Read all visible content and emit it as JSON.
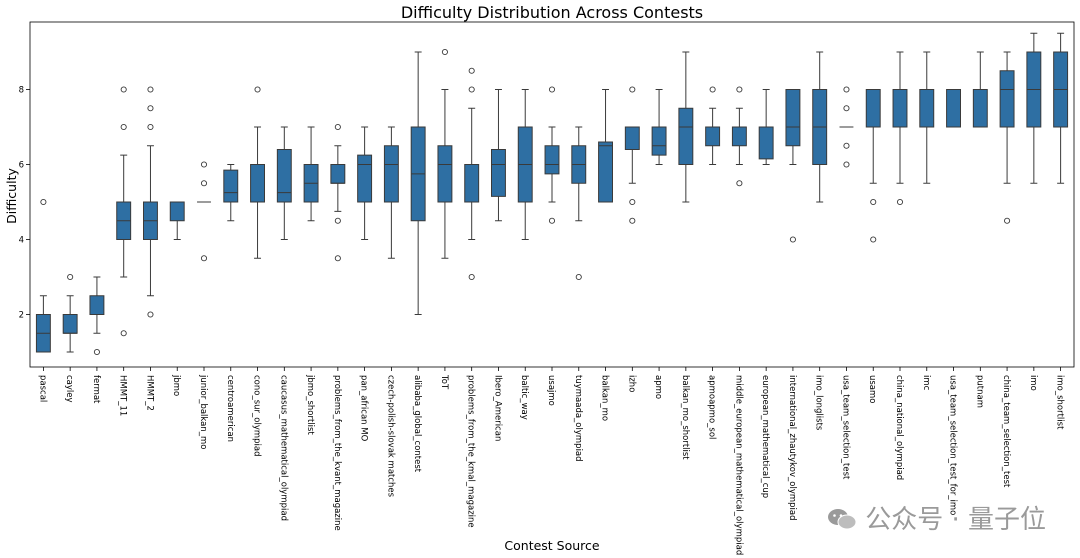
{
  "watermark": "公众号 · 量子位",
  "chart_data": {
    "type": "box",
    "title": "Difficulty Distribution Across Contests",
    "xlabel": "Contest Source",
    "ylabel": "Difficulty",
    "ylim": [
      0.6,
      9.8
    ],
    "yticks": [
      2,
      4,
      6,
      8
    ],
    "grid": false,
    "color": "#2e6fa3",
    "series": [
      {
        "category": "pascal",
        "whisker_low": 1.0,
        "q1": 1.0,
        "median": 1.5,
        "q3": 2.0,
        "whisker_high": 2.5,
        "outliers": [
          5.0
        ]
      },
      {
        "category": "cayley",
        "whisker_low": 1.0,
        "q1": 1.5,
        "median": 1.5,
        "q3": 2.0,
        "whisker_high": 2.5,
        "outliers": [
          3.0
        ]
      },
      {
        "category": "fermat",
        "whisker_low": 1.5,
        "q1": 2.0,
        "median": 2.0,
        "q3": 2.5,
        "whisker_high": 3.0,
        "outliers": [
          1.0
        ]
      },
      {
        "category": "HMMT_11",
        "whisker_low": 3.0,
        "q1": 4.0,
        "median": 4.5,
        "q3": 5.0,
        "whisker_high": 6.25,
        "outliers": [
          1.5,
          7.0,
          8.0
        ]
      },
      {
        "category": "HMMT_2",
        "whisker_low": 2.5,
        "q1": 4.0,
        "median": 4.5,
        "q3": 5.0,
        "whisker_high": 6.5,
        "outliers": [
          2.0,
          7.0,
          7.5,
          8.0
        ]
      },
      {
        "category": "jbmo",
        "whisker_low": 4.0,
        "q1": 4.5,
        "median": 5.0,
        "q3": 5.0,
        "whisker_high": 5.0,
        "outliers": []
      },
      {
        "category": "junior_balkan_mo",
        "whisker_low": 5.0,
        "q1": 5.0,
        "median": 5.0,
        "q3": 5.0,
        "whisker_high": 5.0,
        "outliers": [
          3.5,
          5.5,
          6.0
        ]
      },
      {
        "category": "centroamerican",
        "whisker_low": 4.5,
        "q1": 5.0,
        "median": 5.25,
        "q3": 5.85,
        "whisker_high": 6.0,
        "outliers": []
      },
      {
        "category": "cono_sur_olympiad",
        "whisker_low": 3.5,
        "q1": 5.0,
        "median": 5.0,
        "q3": 6.0,
        "whisker_high": 7.0,
        "outliers": [
          8.0
        ]
      },
      {
        "category": "caucasus_mathematical_olympiad",
        "whisker_low": 4.0,
        "q1": 5.0,
        "median": 5.25,
        "q3": 6.4,
        "whisker_high": 7.0,
        "outliers": []
      },
      {
        "category": "jbmo_shortlist",
        "whisker_low": 4.5,
        "q1": 5.0,
        "median": 5.5,
        "q3": 6.0,
        "whisker_high": 7.0,
        "outliers": []
      },
      {
        "category": "problems_from_the_kvant_magazine",
        "whisker_low": 4.75,
        "q1": 5.5,
        "median": 5.5,
        "q3": 6.0,
        "whisker_high": 6.5,
        "outliers": [
          3.5,
          4.5,
          7.0
        ]
      },
      {
        "category": "pan_african MO",
        "whisker_low": 4.0,
        "q1": 5.0,
        "median": 6.0,
        "q3": 6.25,
        "whisker_high": 7.0,
        "outliers": []
      },
      {
        "category": "czech-polish-slovak matches",
        "whisker_low": 3.5,
        "q1": 5.0,
        "median": 6.0,
        "q3": 6.5,
        "whisker_high": 7.0,
        "outliers": []
      },
      {
        "category": "alibaba_global_contest",
        "whisker_low": 2.0,
        "q1": 4.5,
        "median": 5.75,
        "q3": 7.0,
        "whisker_high": 9.0,
        "outliers": []
      },
      {
        "category": "ToT",
        "whisker_low": 3.5,
        "q1": 5.0,
        "median": 6.0,
        "q3": 6.5,
        "whisker_high": 8.0,
        "outliers": [
          9.0
        ]
      },
      {
        "category": "problems_from_the_kmal_magazine",
        "whisker_low": 4.0,
        "q1": 5.0,
        "median": 5.0,
        "q3": 6.0,
        "whisker_high": 7.5,
        "outliers": [
          3.0,
          8.0,
          8.5
        ]
      },
      {
        "category": "Ibero_American",
        "whisker_low": 4.5,
        "q1": 5.15,
        "median": 6.0,
        "q3": 6.4,
        "whisker_high": 8.0,
        "outliers": []
      },
      {
        "category": "baltic_way",
        "whisker_low": 4.0,
        "q1": 5.0,
        "median": 6.0,
        "q3": 7.0,
        "whisker_high": 8.0,
        "outliers": []
      },
      {
        "category": "usajmo",
        "whisker_low": 5.0,
        "q1": 5.75,
        "median": 6.0,
        "q3": 6.5,
        "whisker_high": 7.0,
        "outliers": [
          4.5,
          8.0
        ]
      },
      {
        "category": "tuymaada_olympiad",
        "whisker_low": 4.5,
        "q1": 5.5,
        "median": 6.0,
        "q3": 6.5,
        "whisker_high": 7.0,
        "outliers": [
          3.0
        ]
      },
      {
        "category": "balkan_mo",
        "whisker_low": 5.0,
        "q1": 5.0,
        "median": 6.5,
        "q3": 6.6,
        "whisker_high": 8.0,
        "outliers": []
      },
      {
        "category": "izho",
        "whisker_low": 5.5,
        "q1": 6.4,
        "median": 7.0,
        "q3": 7.0,
        "whisker_high": 7.0,
        "outliers": [
          4.5,
          5.0,
          8.0
        ]
      },
      {
        "category": "apmo",
        "whisker_low": 6.0,
        "q1": 6.25,
        "median": 6.5,
        "q3": 7.0,
        "whisker_high": 8.0,
        "outliers": []
      },
      {
        "category": "balkan_mo_shortlist",
        "whisker_low": 5.0,
        "q1": 6.0,
        "median": 7.0,
        "q3": 7.5,
        "whisker_high": 9.0,
        "outliers": []
      },
      {
        "category": "apmoapmo_sol",
        "whisker_low": 6.0,
        "q1": 6.5,
        "median": 7.0,
        "q3": 7.0,
        "whisker_high": 7.5,
        "outliers": [
          8.0
        ]
      },
      {
        "category": "middle_european_mathematical_olympiad",
        "whisker_low": 6.0,
        "q1": 6.5,
        "median": 7.0,
        "q3": 7.0,
        "whisker_high": 7.5,
        "outliers": [
          5.5,
          8.0
        ]
      },
      {
        "category": "european_mathematical_cup",
        "whisker_low": 6.0,
        "q1": 6.15,
        "median": 7.0,
        "q3": 7.0,
        "whisker_high": 8.0,
        "outliers": []
      },
      {
        "category": "international_zhautykov_olympiad",
        "whisker_low": 6.0,
        "q1": 6.5,
        "median": 7.0,
        "q3": 8.0,
        "whisker_high": 8.0,
        "outliers": [
          4.0
        ]
      },
      {
        "category": "imo_longlists",
        "whisker_low": 5.0,
        "q1": 6.0,
        "median": 7.0,
        "q3": 8.0,
        "whisker_high": 9.0,
        "outliers": []
      },
      {
        "category": "usa_team_selection_test",
        "whisker_low": 7.0,
        "q1": 7.0,
        "median": 7.0,
        "q3": 7.0,
        "whisker_high": 7.0,
        "outliers": [
          6.0,
          6.5,
          7.5,
          8.0
        ]
      },
      {
        "category": "usamo",
        "whisker_low": 5.5,
        "q1": 7.0,
        "median": 8.0,
        "q3": 8.0,
        "whisker_high": 8.0,
        "outliers": [
          4.0,
          5.0
        ]
      },
      {
        "category": "china_national_olympiad",
        "whisker_low": 5.5,
        "q1": 7.0,
        "median": 8.0,
        "q3": 8.0,
        "whisker_high": 9.0,
        "outliers": [
          5.0
        ]
      },
      {
        "category": "imc",
        "whisker_low": 5.5,
        "q1": 7.0,
        "median": 8.0,
        "q3": 8.0,
        "whisker_high": 9.0,
        "outliers": []
      },
      {
        "category": "usa_team_selection_test_for_imo",
        "whisker_low": 7.0,
        "q1": 7.0,
        "median": 8.0,
        "q3": 8.0,
        "whisker_high": 8.0,
        "outliers": []
      },
      {
        "category": "putnam",
        "whisker_low": 7.0,
        "q1": 7.0,
        "median": 8.0,
        "q3": 8.0,
        "whisker_high": 9.0,
        "outliers": []
      },
      {
        "category": "china_team_selection_test",
        "whisker_low": 5.5,
        "q1": 7.0,
        "median": 8.0,
        "q3": 8.5,
        "whisker_high": 9.0,
        "outliers": [
          4.5
        ]
      },
      {
        "category": "imo",
        "whisker_low": 5.5,
        "q1": 7.0,
        "median": 8.0,
        "q3": 9.0,
        "whisker_high": 9.5,
        "outliers": []
      },
      {
        "category": "imo_shortlist",
        "whisker_low": 5.5,
        "q1": 7.0,
        "median": 8.0,
        "q3": 9.0,
        "whisker_high": 9.5,
        "outliers": []
      }
    ]
  }
}
